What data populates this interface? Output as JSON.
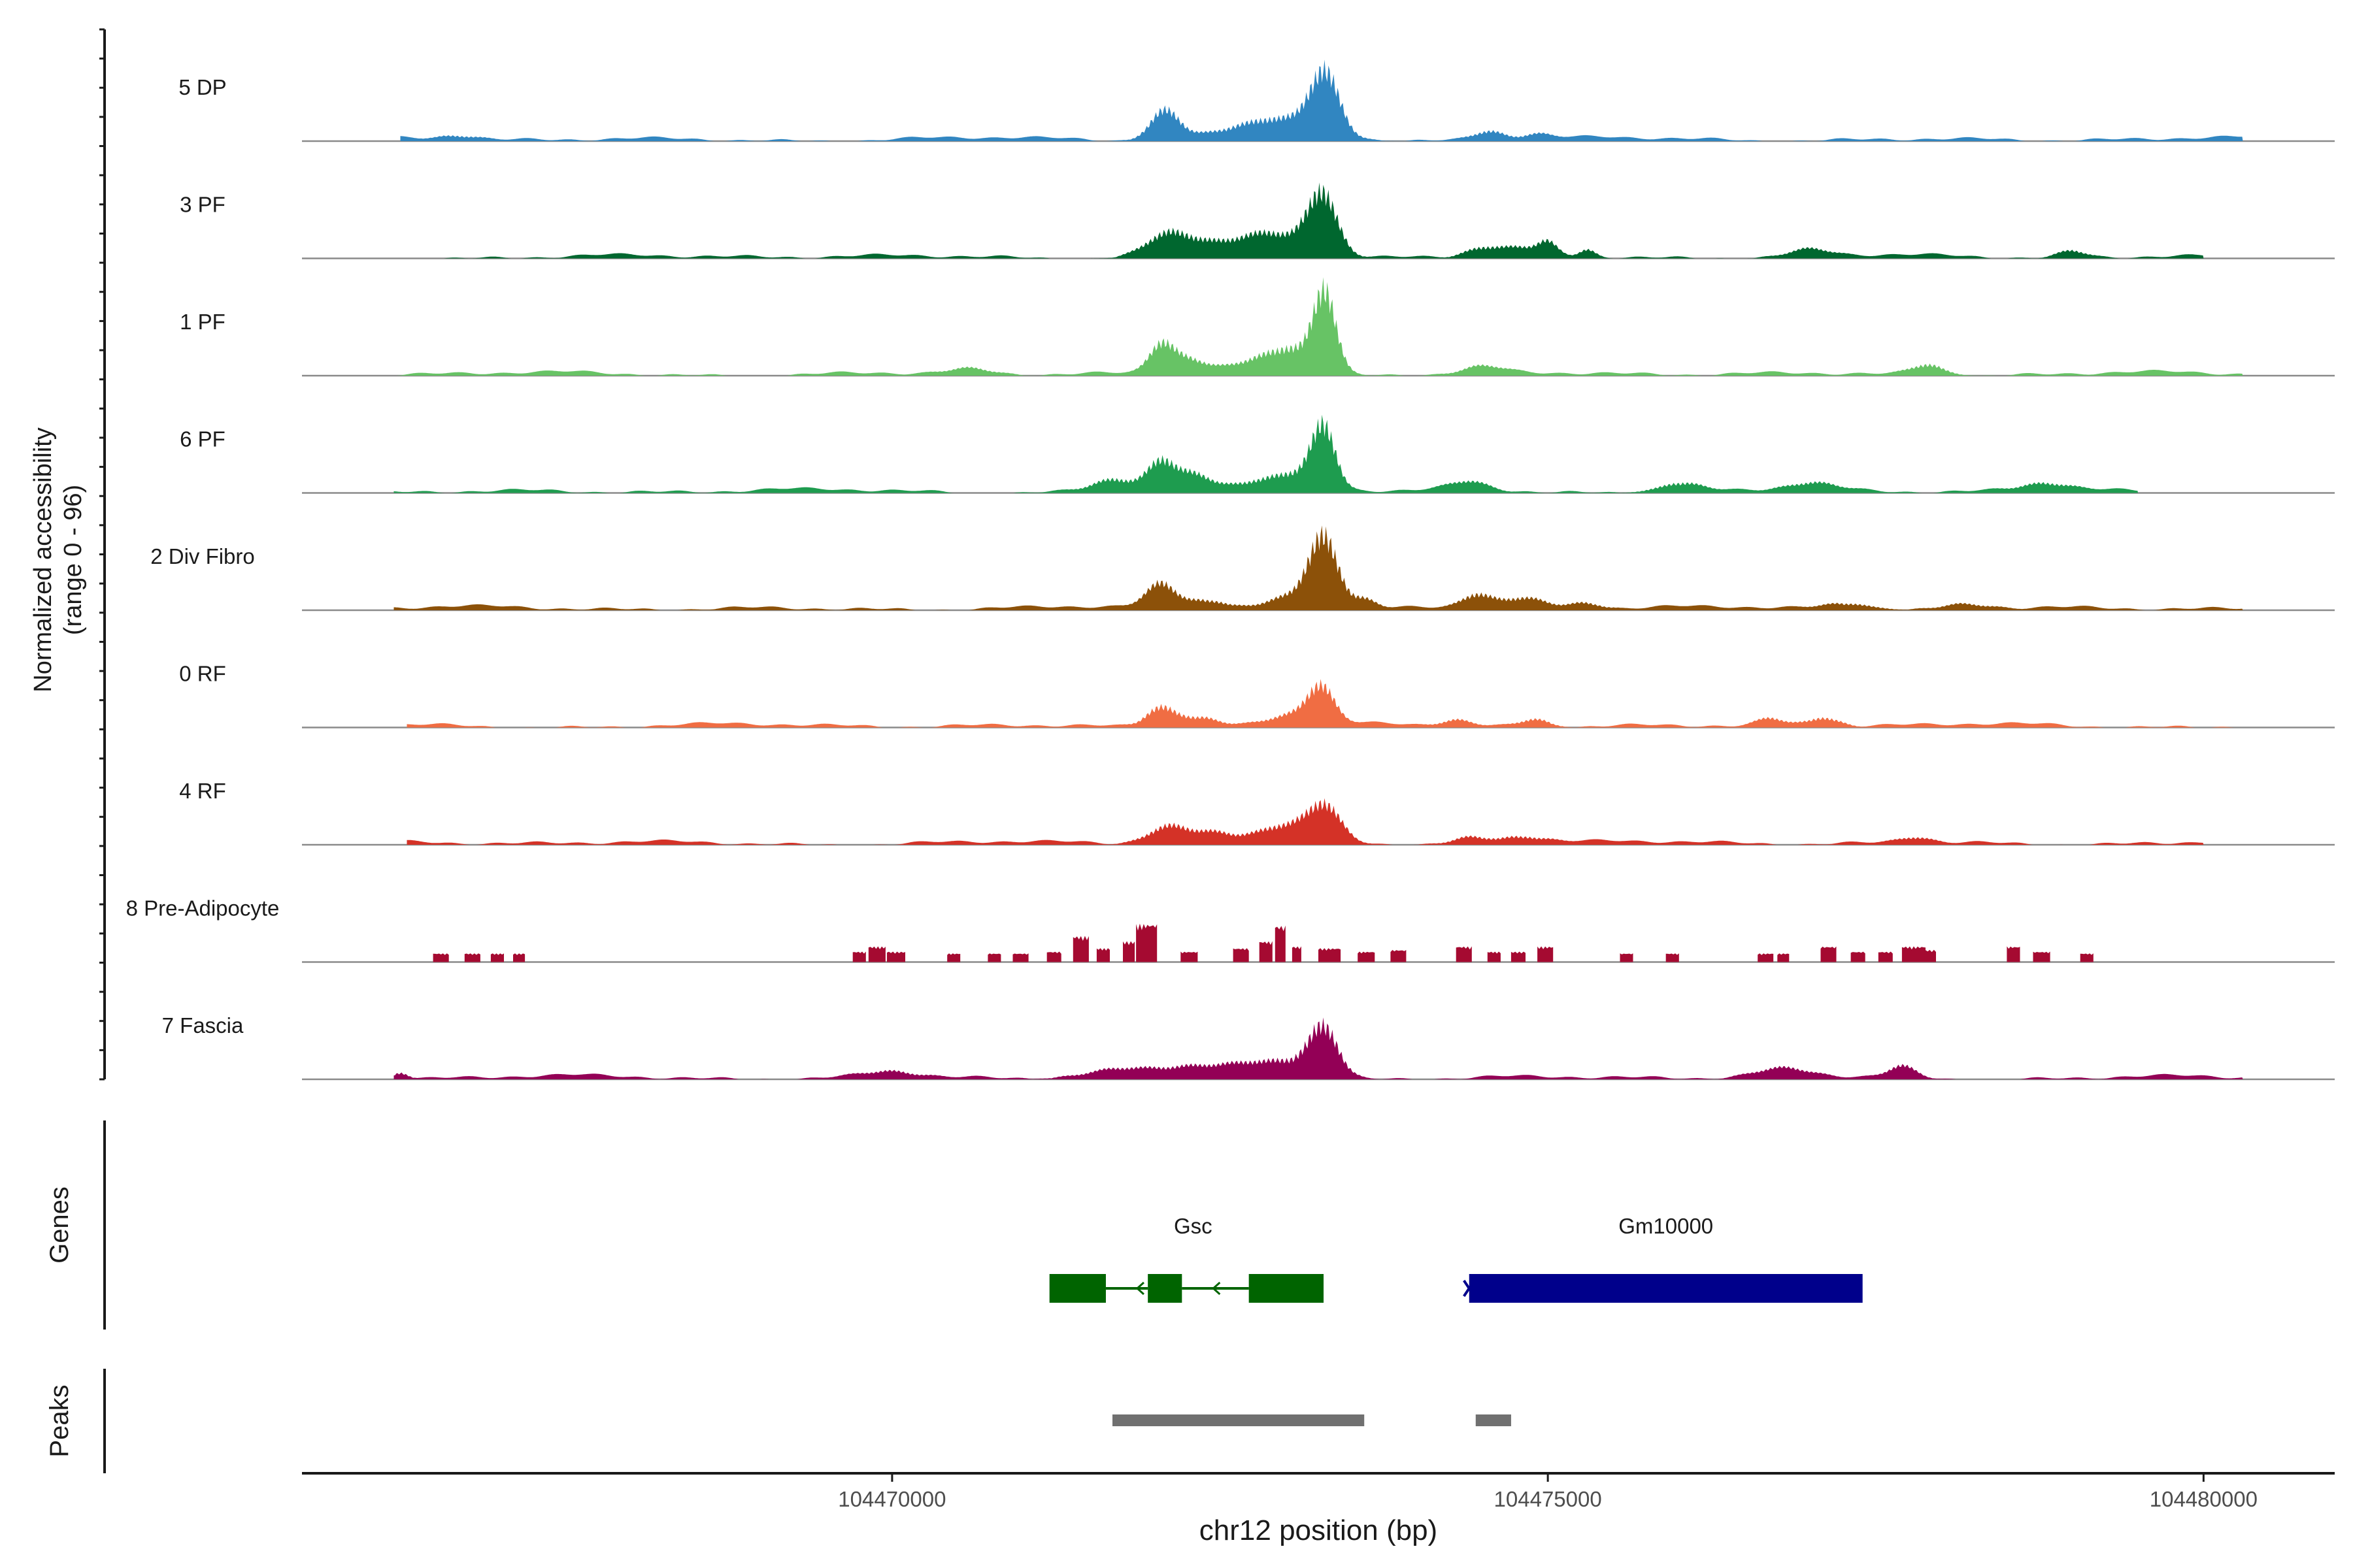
{
  "chart_data": {
    "type": "area",
    "title": "",
    "ylabel_line1": "Normalized accessibility",
    "ylabel_line2": "(range 0 - 96)",
    "xlabel": "chr12 position (bp)",
    "xlim": [
      104465500,
      104481000
    ],
    "ylim": [
      0,
      96
    ],
    "x_ticks": [
      104470000,
      104475000,
      104480000
    ],
    "x_tick_labels": [
      "104470000",
      "104475000",
      "104480000"
    ],
    "tracks": [
      {
        "name": "5 DP",
        "color": "#3186c1",
        "start": 104466250,
        "end": 104480300,
        "peaks": [
          [
            104472080,
            38,
            110
          ],
          [
            104472950,
            14,
            250
          ],
          [
            104473300,
            78,
            110
          ],
          [
            104473000,
            10,
            300
          ],
          [
            104472600,
            8,
            250
          ],
          [
            104474550,
            12,
            110
          ],
          [
            104474900,
            7,
            110
          ],
          [
            104466700,
            6,
            140
          ]
        ]
      },
      {
        "name": "3 PF",
        "color": "#00672f",
        "start": 104466200,
        "end": 104480000,
        "peaks": [
          [
            104472100,
            28,
            160
          ],
          [
            104472400,
            14,
            180
          ],
          [
            104472800,
            16,
            200
          ],
          [
            104473280,
            78,
            110
          ],
          [
            104473000,
            14,
            250
          ],
          [
            104474500,
            12,
            130
          ],
          [
            104474800,
            10,
            150
          ],
          [
            104475000,
            14,
            70
          ],
          [
            104475300,
            9,
            60
          ],
          [
            104477000,
            8,
            150
          ],
          [
            104479000,
            8,
            100
          ]
        ]
      },
      {
        "name": "1 PF",
        "color": "#67c365",
        "start": 104466200,
        "end": 104480300,
        "peaks": [
          [
            104472050,
            36,
            90
          ],
          [
            104472250,
            18,
            130
          ],
          [
            104472900,
            22,
            240
          ],
          [
            104473300,
            100,
            85
          ],
          [
            104473100,
            18,
            160
          ],
          [
            104474500,
            8,
            150
          ],
          [
            104477900,
            14,
            120
          ],
          [
            104470600,
            6,
            160
          ]
        ]
      },
      {
        "name": "6 PF",
        "color": "#1e9c4f",
        "start": 104466200,
        "end": 104479500,
        "peaks": [
          [
            104471700,
            16,
            160
          ],
          [
            104472050,
            36,
            100
          ],
          [
            104472300,
            20,
            130
          ],
          [
            104472800,
            14,
            200
          ],
          [
            104473290,
            78,
            90
          ],
          [
            104473100,
            18,
            160
          ],
          [
            104474400,
            10,
            140
          ],
          [
            104476000,
            12,
            160
          ],
          [
            104477000,
            10,
            180
          ],
          [
            104478800,
            10,
            180
          ]
        ]
      },
      {
        "name": "2 Div Fibro",
        "color": "#8c5109",
        "start": 104466200,
        "end": 104480300,
        "peaks": [
          [
            104472050,
            30,
            110
          ],
          [
            104472400,
            12,
            160
          ],
          [
            104473290,
            90,
            110
          ],
          [
            104473050,
            16,
            200
          ],
          [
            104473600,
            12,
            90
          ],
          [
            104474450,
            18,
            110
          ],
          [
            104474800,
            14,
            180
          ],
          [
            104475300,
            8,
            120
          ],
          [
            104477300,
            8,
            180
          ],
          [
            104478200,
            6,
            180
          ]
        ]
      },
      {
        "name": "0 RF",
        "color": "#f06d43",
        "start": 104466300,
        "end": 104480300,
        "peaks": [
          [
            104472050,
            26,
            110
          ],
          [
            104472350,
            12,
            140
          ],
          [
            104473270,
            46,
            100
          ],
          [
            104473050,
            14,
            180
          ],
          [
            104474300,
            8,
            120
          ],
          [
            104474900,
            10,
            110
          ],
          [
            104476700,
            10,
            100
          ],
          [
            104477100,
            12,
            130
          ]
        ]
      },
      {
        "name": "4 RF",
        "color": "#d43227",
        "start": 104466300,
        "end": 104480000,
        "peaks": [
          [
            104472100,
            22,
            150
          ],
          [
            104472450,
            12,
            150
          ],
          [
            104472900,
            10,
            200
          ],
          [
            104473300,
            42,
            120
          ],
          [
            104473050,
            14,
            200
          ],
          [
            104474400,
            8,
            130
          ],
          [
            104474800,
            10,
            180
          ],
          [
            104477800,
            8,
            120
          ]
        ]
      },
      {
        "name": "8 Pre-Adipocyte",
        "color": "#a50a31",
        "start": 104466300,
        "end": 104479400,
        "blocks": [
          [
            104466500,
            104466620,
            10
          ],
          [
            104466740,
            104466860,
            10
          ],
          [
            104466940,
            104467040,
            10
          ],
          [
            104467110,
            104467200,
            10
          ],
          [
            104469700,
            104469800,
            12
          ],
          [
            104469820,
            104469950,
            18
          ],
          [
            104469960,
            104470100,
            12
          ],
          [
            104470420,
            104470520,
            10
          ],
          [
            104470730,
            104470830,
            10
          ],
          [
            104470920,
            104471040,
            10
          ],
          [
            104471180,
            104471290,
            12
          ],
          [
            104471380,
            104471500,
            30
          ],
          [
            104471560,
            104471660,
            16
          ],
          [
            104471760,
            104471850,
            24
          ],
          [
            104471860,
            104472020,
            44
          ],
          [
            104472200,
            104472330,
            12
          ],
          [
            104472600,
            104472720,
            16
          ],
          [
            104472800,
            104472900,
            24
          ],
          [
            104472920,
            104473000,
            42
          ],
          [
            104473050,
            104473120,
            18
          ],
          [
            104473250,
            104473420,
            16
          ],
          [
            104473550,
            104473680,
            12
          ],
          [
            104473800,
            104473920,
            14
          ],
          [
            104474300,
            104474420,
            18
          ],
          [
            104474540,
            104474640,
            12
          ],
          [
            104474720,
            104474830,
            12
          ],
          [
            104474920,
            104475040,
            18
          ],
          [
            104475550,
            104475650,
            10
          ],
          [
            104475900,
            104476000,
            10
          ],
          [
            104476600,
            104476720,
            10
          ],
          [
            104476750,
            104476840,
            10
          ],
          [
            104477080,
            104477200,
            18
          ],
          [
            104477310,
            104477420,
            12
          ],
          [
            104477520,
            104477630,
            12
          ],
          [
            104477700,
            104477880,
            18
          ],
          [
            104477880,
            104477960,
            14
          ],
          [
            104478500,
            104478600,
            18
          ],
          [
            104478700,
            104478830,
            12
          ],
          [
            104479060,
            104479160,
            10
          ]
        ]
      },
      {
        "name": "7 Fascia",
        "color": "#930056",
        "start": 104466200,
        "end": 104480300,
        "peaks": [
          [
            104473290,
            62,
            110
          ],
          [
            104473050,
            18,
            200
          ],
          [
            104472700,
            12,
            200
          ],
          [
            104471800,
            10,
            300
          ],
          [
            104472300,
            10,
            200
          ],
          [
            104477700,
            14,
            100
          ],
          [
            104476800,
            10,
            200
          ],
          [
            104466250,
            8,
            60
          ],
          [
            104470000,
            8,
            200
          ]
        ]
      }
    ],
    "genes_label": "Genes",
    "genes": [
      {
        "name": "Gsc",
        "strand": "-",
        "color": "#006400",
        "exons": [
          [
            104471200,
            104471630
          ],
          [
            104471950,
            104472210
          ],
          [
            104472720,
            104473290
          ]
        ],
        "introns": [
          [
            104471630,
            104471950
          ],
          [
            104472210,
            104472720
          ]
        ]
      },
      {
        "name": "Gm10000",
        "strand": "-",
        "color": "#00008b",
        "exons": [
          [
            104474400,
            104477400
          ]
        ],
        "introns": []
      }
    ],
    "peaks_label": "Peaks",
    "peak_color": "#707070",
    "peak_regions": [
      [
        104471680,
        104473600
      ],
      [
        104474450,
        104474720
      ]
    ]
  }
}
